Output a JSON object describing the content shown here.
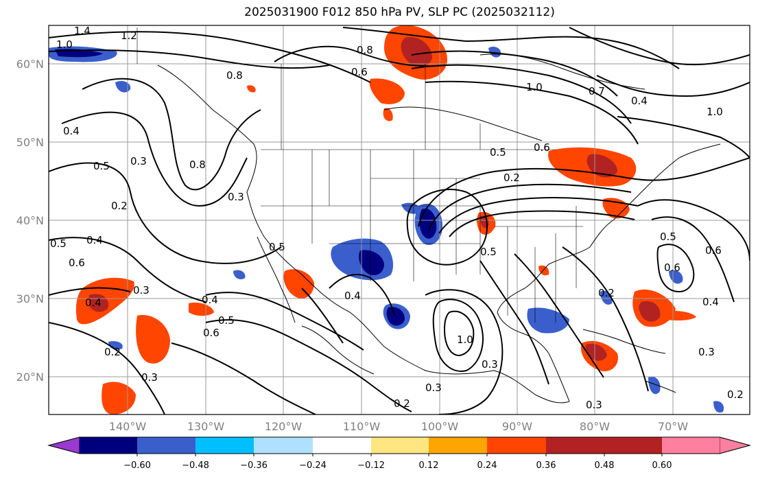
{
  "title": "2025031900 F012 850 hPa PV, SLP PC (2025032112)",
  "latitudes": [
    "60°N",
    "50°N",
    "40°N",
    "30°N",
    "20°N"
  ],
  "longitudes": [
    "140°W",
    "130°W",
    "120°W",
    "110°W",
    "100°W",
    "90°W",
    "80°W",
    "70°W"
  ],
  "colorbar": {
    "colors": [
      "#9a3ad0",
      "#00007f",
      "#3a5fcd",
      "#00bfff",
      "#b0e0ff",
      "#ffffff",
      "#ffe680",
      "#ffa500",
      "#ff4500",
      "#b22222",
      "#ff7fa0"
    ],
    "labels": [
      "−0.60",
      "−0.48",
      "−0.36",
      "−0.24",
      "−0.12",
      "0.12",
      "0.24",
      "0.36",
      "0.48",
      "0.60"
    ]
  },
  "contour_labels": [
    "1.4",
    "1.2",
    "1.0",
    "0.8",
    "0.6",
    "0.8",
    "0.4",
    "0.5",
    "0.3",
    "0.8",
    "0.2",
    "0.3",
    "0.5",
    "0.4",
    "0.6",
    "0.5",
    "0.5",
    "0.6",
    "0.2",
    "0.7",
    "1.0",
    "0.4",
    "1.0",
    "0.3",
    "0.4",
    "0.5",
    "0.6",
    "0.2",
    "0.3",
    "0.4",
    "0.3",
    "0.4",
    "0.6",
    "0.5",
    "0.3",
    "0.2",
    "0.2",
    "0.3",
    "0.2",
    "0.4",
    "0.6",
    "1.0",
    "0.5",
    "0.3"
  ]
}
